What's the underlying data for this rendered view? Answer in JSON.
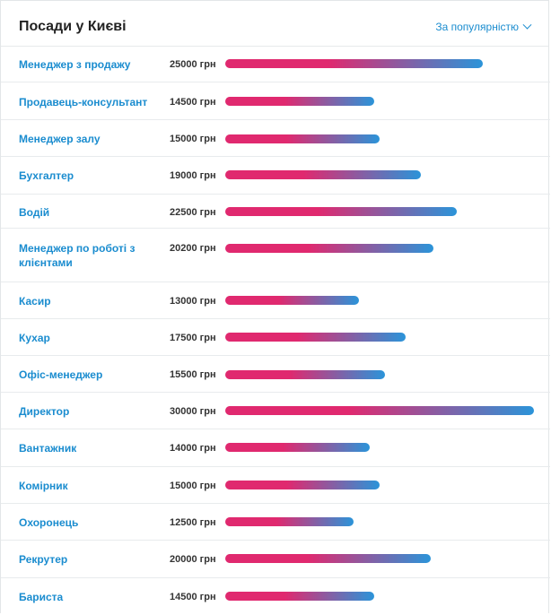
{
  "header": {
    "title": "Посади у Києві",
    "sort_label": "За популярністю"
  },
  "scale_max": 30000,
  "positions": [
    {
      "title": "Менеджер з продажу",
      "salary": "25000 грн",
      "value": 25000
    },
    {
      "title": "Продавець-консультант",
      "salary": "14500 грн",
      "value": 14500
    },
    {
      "title": "Менеджер залу",
      "salary": "15000 грн",
      "value": 15000
    },
    {
      "title": "Бухгалтер",
      "salary": "19000 грн",
      "value": 19000
    },
    {
      "title": "Водій",
      "salary": "22500 грн",
      "value": 22500
    },
    {
      "title": "Менеджер по роботі з клієнтами",
      "salary": "20200 грн",
      "value": 20200
    },
    {
      "title": "Касир",
      "salary": "13000 грн",
      "value": 13000
    },
    {
      "title": "Кухар",
      "salary": "17500 грн",
      "value": 17500
    },
    {
      "title": "Офіс-менеджер",
      "salary": "15500 грн",
      "value": 15500
    },
    {
      "title": "Директор",
      "salary": "30000 грн",
      "value": 30000
    },
    {
      "title": "Вантажник",
      "salary": "14000 грн",
      "value": 14000
    },
    {
      "title": "Комірник",
      "salary": "15000 грн",
      "value": 15000
    },
    {
      "title": "Охоронець",
      "salary": "12500 грн",
      "value": 12500
    },
    {
      "title": "Рекрутер",
      "salary": "20000 грн",
      "value": 20000
    },
    {
      "title": "Бариста",
      "salary": "14500 грн",
      "value": 14500
    }
  ],
  "colors": {
    "link": "#1a8ccf",
    "bar_start": "#e0296f",
    "bar_end": "#2b94d9"
  }
}
